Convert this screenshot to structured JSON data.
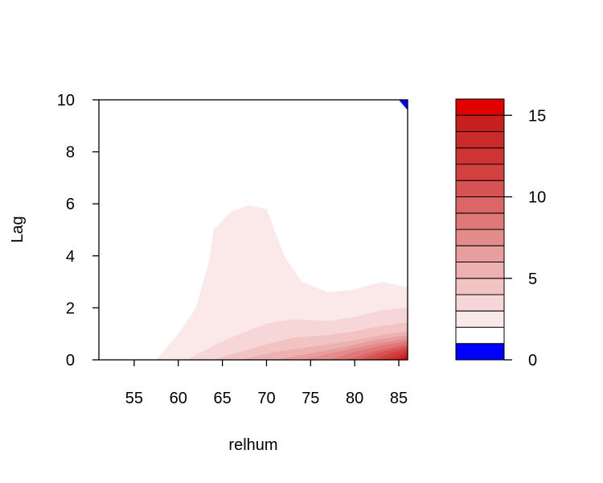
{
  "chart_data": {
    "type": "heatmap",
    "subtype": "filled-contour",
    "xlabel": "relhum",
    "ylabel": "Lag",
    "xlim": [
      51,
      86
    ],
    "ylim": [
      0,
      10
    ],
    "xticks": [
      "55",
      "60",
      "65",
      "70",
      "75",
      "80",
      "85"
    ],
    "yticks": [
      "0",
      "2",
      "4",
      "6",
      "8",
      "10"
    ],
    "grid": false,
    "colorbar": {
      "ticks": [
        "0",
        "5",
        "10",
        "15"
      ],
      "min": 0,
      "max": 16,
      "levels": [
        0,
        1,
        2,
        3,
        4,
        5,
        6,
        7,
        8,
        9,
        10,
        11,
        12,
        13,
        14,
        15,
        16
      ],
      "colors": [
        "#0000ff",
        "#ffffff",
        "#fbe9e9",
        "#f6d6d6",
        "#f2c3c3",
        "#edb1b1",
        "#e99e9e",
        "#e48b8b",
        "#e07878",
        "#db6666",
        "#d75353",
        "#d24040",
        "#cf3434",
        "#cc2929",
        "#c91e1e",
        "#e00000"
      ]
    },
    "contours": [
      {
        "level": 1,
        "points": [
          [
            57.5,
            0
          ],
          [
            60,
            1.0
          ],
          [
            62,
            2.0
          ],
          [
            63.5,
            3.8
          ],
          [
            64,
            5.0
          ],
          [
            66,
            5.7
          ],
          [
            68,
            5.95
          ],
          [
            70,
            5.8
          ],
          [
            72,
            4.0
          ],
          [
            74,
            3.0
          ],
          [
            77,
            2.6
          ],
          [
            80,
            2.7
          ],
          [
            83,
            3.0
          ],
          [
            86,
            2.8
          ],
          [
            86,
            0
          ]
        ]
      },
      {
        "level": 2,
        "points": [
          [
            61,
            0
          ],
          [
            64,
            0.55
          ],
          [
            67,
            1.0
          ],
          [
            70,
            1.4
          ],
          [
            73,
            1.55
          ],
          [
            77,
            1.5
          ],
          [
            80,
            1.65
          ],
          [
            83,
            1.9
          ],
          [
            86,
            2.0
          ],
          [
            86,
            0
          ]
        ]
      },
      {
        "level": 3,
        "points": [
          [
            64,
            0
          ],
          [
            67,
            0.3
          ],
          [
            70,
            0.6
          ],
          [
            73,
            0.85
          ],
          [
            77,
            0.95
          ],
          [
            80,
            1.1
          ],
          [
            83,
            1.3
          ],
          [
            86,
            1.45
          ],
          [
            86,
            0
          ]
        ]
      },
      {
        "level": 4,
        "points": [
          [
            67,
            0
          ],
          [
            71,
            0.3
          ],
          [
            75,
            0.5
          ],
          [
            79,
            0.7
          ],
          [
            83,
            0.95
          ],
          [
            86,
            1.1
          ],
          [
            86,
            0
          ]
        ]
      },
      {
        "level": 5,
        "points": [
          [
            71,
            0
          ],
          [
            75,
            0.25
          ],
          [
            79,
            0.5
          ],
          [
            82,
            0.75
          ],
          [
            86,
            0.95
          ],
          [
            86,
            0
          ]
        ]
      },
      {
        "level": 6,
        "points": [
          [
            74,
            0
          ],
          [
            78,
            0.3
          ],
          [
            82,
            0.6
          ],
          [
            86,
            0.82
          ],
          [
            86,
            0
          ]
        ]
      },
      {
        "level": 7,
        "points": [
          [
            77,
            0
          ],
          [
            80,
            0.3
          ],
          [
            83,
            0.55
          ],
          [
            86,
            0.72
          ],
          [
            86,
            0
          ]
        ]
      },
      {
        "level": 8,
        "points": [
          [
            79,
            0
          ],
          [
            82,
            0.3
          ],
          [
            86,
            0.62
          ],
          [
            86,
            0
          ]
        ]
      },
      {
        "level": 9,
        "points": [
          [
            80.5,
            0
          ],
          [
            83,
            0.3
          ],
          [
            86,
            0.53
          ],
          [
            86,
            0
          ]
        ]
      },
      {
        "level": 10,
        "points": [
          [
            82,
            0
          ],
          [
            84,
            0.25
          ],
          [
            86,
            0.45
          ],
          [
            86,
            0
          ]
        ]
      },
      {
        "level": 11,
        "points": [
          [
            83,
            0
          ],
          [
            85,
            0.22
          ],
          [
            86,
            0.36
          ],
          [
            86,
            0
          ]
        ]
      },
      {
        "level": 12,
        "points": [
          [
            84,
            0
          ],
          [
            85.5,
            0.2
          ],
          [
            86,
            0.28
          ],
          [
            86,
            0
          ]
        ]
      },
      {
        "level": 13,
        "points": [
          [
            84.8,
            0
          ],
          [
            86,
            0.2
          ],
          [
            86,
            0
          ]
        ]
      },
      {
        "level": 14,
        "points": [
          [
            85.4,
            0
          ],
          [
            86,
            0.12
          ],
          [
            86,
            0
          ]
        ]
      }
    ],
    "negative_region": {
      "level": 0,
      "points": [
        [
          85,
          10
        ],
        [
          86,
          10
        ],
        [
          86,
          9.6
        ]
      ]
    }
  }
}
